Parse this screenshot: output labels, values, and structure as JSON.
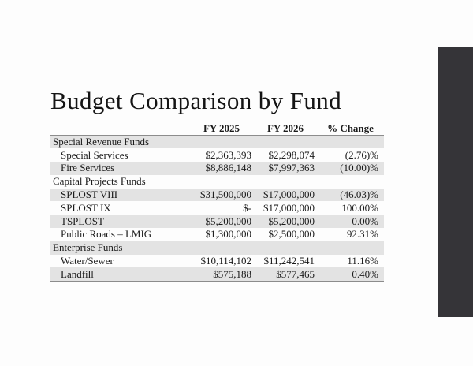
{
  "slide": {
    "title": "Budget Comparison by Fund"
  },
  "colors": {
    "accent_bar": "#353438",
    "row_band": "#e3e3e3",
    "table_border": "#8c8c8c",
    "text": "#1b1b1b"
  },
  "table": {
    "columns": [
      "",
      "FY 2025",
      "FY 2026",
      "% Change"
    ],
    "rows": [
      {
        "type": "section",
        "label": "Special Revenue Funds",
        "fy2025": "",
        "fy2026": "",
        "change": ""
      },
      {
        "type": "item",
        "label": "Special Services",
        "fy2025": "$2,363,393",
        "fy2026": "$2,298,074",
        "change": "(2.76)%"
      },
      {
        "type": "item",
        "label": "Fire Services",
        "fy2025": "$8,886,148",
        "fy2026": "$7,997,363",
        "change": "(10.00)%"
      },
      {
        "type": "section",
        "label": "Capital Projects Funds",
        "fy2025": "",
        "fy2026": "",
        "change": ""
      },
      {
        "type": "item",
        "label": "SPLOST VIII",
        "fy2025": "$31,500,000",
        "fy2026": "$17,000,000",
        "change": "(46.03)%"
      },
      {
        "type": "item",
        "label": "SPLOST IX",
        "fy2025": "$-",
        "fy2026": "$17,000,000",
        "change": "100.00%"
      },
      {
        "type": "item",
        "label": "TSPLOST",
        "fy2025": "$5,200,000",
        "fy2026": "$5,200,000",
        "change": "0.00%"
      },
      {
        "type": "item",
        "label": "Public Roads – LMIG",
        "fy2025": "$1,300,000",
        "fy2026": "$2,500,000",
        "change": "92.31%"
      },
      {
        "type": "section",
        "label": "Enterprise Funds",
        "fy2025": "",
        "fy2026": "",
        "change": ""
      },
      {
        "type": "item",
        "label": "Water/Sewer",
        "fy2025": "$10,114,102",
        "fy2026": "$11,242,541",
        "change": "11.16%"
      },
      {
        "type": "item",
        "label": "Landfill",
        "fy2025": "$575,188",
        "fy2026": "$577,465",
        "change": "0.40%"
      }
    ]
  }
}
